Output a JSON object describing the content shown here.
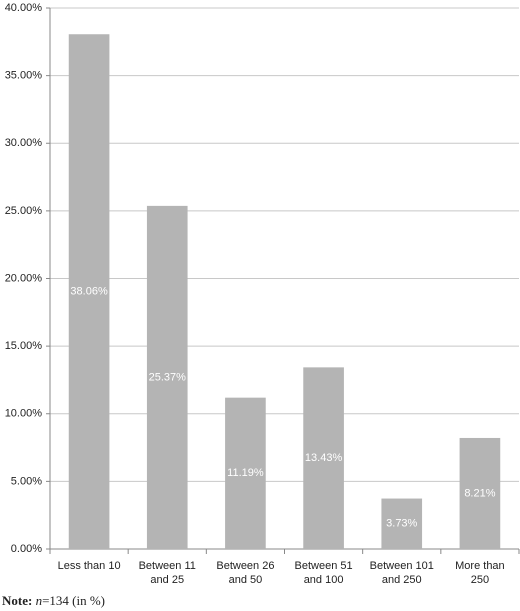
{
  "chart_data": {
    "type": "bar",
    "categories": [
      [
        "Less than 10"
      ],
      [
        "Between 11",
        "and 25"
      ],
      [
        "Between 26",
        "and 50"
      ],
      [
        "Between 51",
        "and 100"
      ],
      [
        "Between 101",
        "and 250"
      ],
      [
        "More than",
        "250"
      ]
    ],
    "values": [
      38.06,
      25.37,
      11.19,
      13.43,
      3.73,
      8.21
    ],
    "value_labels": [
      "38.06%",
      "25.37%",
      "11.19%",
      "13.43%",
      "3.73%",
      "8.21%"
    ],
    "color": "#b4b4b4",
    "ylim": [
      0,
      40
    ],
    "yticks": [
      {
        "value": 0,
        "label": "0.00%"
      },
      {
        "value": 5,
        "label": "5.00%"
      },
      {
        "value": 10,
        "label": "10.00%"
      },
      {
        "value": 15,
        "label": "15.00%"
      },
      {
        "value": 20,
        "label": "20.00%"
      },
      {
        "value": 25,
        "label": "25.00%"
      },
      {
        "value": 30,
        "label": "30.00%"
      },
      {
        "value": 35,
        "label": "35.00%"
      },
      {
        "value": 40,
        "label": "40.00%"
      }
    ],
    "grid": true,
    "note": [
      "Note:",
      "n",
      "=134 (in %)"
    ]
  }
}
